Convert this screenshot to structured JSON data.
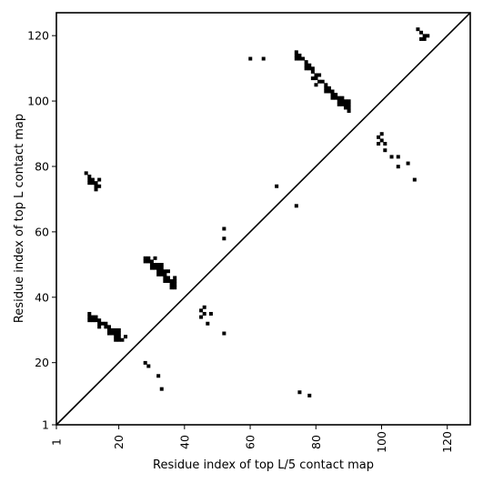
{
  "chart_data": {
    "type": "heatmap",
    "xlabel": "Residue index of top L/5 contact map",
    "ylabel": "Residue index of top L contact map",
    "xlim": [
      1,
      127
    ],
    "ylim": [
      1,
      127
    ],
    "x_ticks": [
      1,
      20,
      40,
      60,
      80,
      100,
      120
    ],
    "y_ticks": [
      1,
      20,
      40,
      60,
      80,
      100,
      120
    ],
    "x_tick_rotation": -90,
    "grid": false,
    "diagonal_line": true,
    "cell_color": "#000000",
    "upper_triangle_contacts": [
      [
        10,
        78
      ],
      [
        11,
        75
      ],
      [
        11,
        76
      ],
      [
        11,
        77
      ],
      [
        12,
        75
      ],
      [
        12,
        76
      ],
      [
        13,
        73
      ],
      [
        13,
        74
      ],
      [
        13,
        75
      ],
      [
        14,
        74
      ],
      [
        14,
        76
      ],
      [
        11,
        33
      ],
      [
        11,
        34
      ],
      [
        11,
        35
      ],
      [
        12,
        33
      ],
      [
        12,
        34
      ],
      [
        13,
        33
      ],
      [
        13,
        34
      ],
      [
        14,
        31
      ],
      [
        14,
        32
      ],
      [
        14,
        33
      ],
      [
        15,
        32
      ],
      [
        16,
        31
      ],
      [
        16,
        32
      ],
      [
        17,
        29
      ],
      [
        17,
        30
      ],
      [
        17,
        31
      ],
      [
        18,
        29
      ],
      [
        18,
        30
      ],
      [
        19,
        27
      ],
      [
        19,
        28
      ],
      [
        19,
        29
      ],
      [
        19,
        30
      ],
      [
        20,
        27
      ],
      [
        20,
        28
      ],
      [
        20,
        29
      ],
      [
        20,
        30
      ],
      [
        21,
        27
      ],
      [
        22,
        28
      ],
      [
        28,
        51
      ],
      [
        28,
        52
      ],
      [
        29,
        51
      ],
      [
        29,
        52
      ],
      [
        30,
        49
      ],
      [
        30,
        50
      ],
      [
        30,
        51
      ],
      [
        31,
        49
      ],
      [
        31,
        50
      ],
      [
        31,
        52
      ],
      [
        32,
        47
      ],
      [
        32,
        48
      ],
      [
        32,
        49
      ],
      [
        32,
        50
      ],
      [
        33,
        47
      ],
      [
        33,
        48
      ],
      [
        33,
        49
      ],
      [
        33,
        50
      ],
      [
        34,
        45
      ],
      [
        34,
        46
      ],
      [
        34,
        47
      ],
      [
        34,
        48
      ],
      [
        35,
        45
      ],
      [
        35,
        46
      ],
      [
        35,
        48
      ],
      [
        36,
        43
      ],
      [
        36,
        44
      ],
      [
        36,
        45
      ],
      [
        37,
        43
      ],
      [
        37,
        44
      ],
      [
        37,
        45
      ],
      [
        37,
        46
      ],
      [
        45,
        34
      ],
      [
        45,
        36
      ],
      [
        46,
        35
      ],
      [
        46,
        37
      ],
      [
        47,
        32
      ],
      [
        48,
        35
      ],
      [
        52,
        29
      ],
      [
        52,
        58
      ],
      [
        52,
        61
      ],
      [
        60,
        113
      ],
      [
        64,
        113
      ],
      [
        68,
        74
      ],
      [
        74,
        68
      ],
      [
        74,
        113
      ],
      [
        74,
        114
      ],
      [
        74,
        115
      ],
      [
        75,
        113
      ],
      [
        75,
        114
      ],
      [
        76,
        113
      ],
      [
        77,
        110
      ],
      [
        77,
        111
      ],
      [
        77,
        112
      ],
      [
        78,
        110
      ],
      [
        78,
        111
      ],
      [
        79,
        107
      ],
      [
        79,
        109
      ],
      [
        79,
        110
      ],
      [
        80,
        105
      ],
      [
        80,
        107
      ],
      [
        80,
        108
      ],
      [
        81,
        106
      ],
      [
        81,
        108
      ],
      [
        82,
        106
      ],
      [
        83,
        103
      ],
      [
        83,
        104
      ],
      [
        83,
        105
      ],
      [
        84,
        103
      ],
      [
        84,
        104
      ],
      [
        85,
        101
      ],
      [
        85,
        102
      ],
      [
        85,
        103
      ],
      [
        86,
        101
      ],
      [
        86,
        102
      ],
      [
        87,
        99
      ],
      [
        87,
        100
      ],
      [
        87,
        101
      ],
      [
        88,
        99
      ],
      [
        88,
        100
      ],
      [
        88,
        101
      ],
      [
        89,
        98
      ],
      [
        89,
        99
      ],
      [
        89,
        100
      ],
      [
        90,
        97
      ],
      [
        90,
        98
      ],
      [
        90,
        99
      ],
      [
        90,
        100
      ],
      [
        99,
        87
      ],
      [
        99,
        89
      ],
      [
        100,
        88
      ],
      [
        100,
        90
      ],
      [
        101,
        85
      ],
      [
        101,
        87
      ],
      [
        103,
        83
      ],
      [
        105,
        80
      ],
      [
        105,
        83
      ],
      [
        108,
        81
      ],
      [
        110,
        76
      ],
      [
        111,
        122
      ],
      [
        112,
        121
      ],
      [
        112,
        119
      ],
      [
        113,
        119
      ],
      [
        113,
        120
      ],
      [
        114,
        120
      ]
    ],
    "lower_triangle_contacts": [
      [
        28,
        20
      ],
      [
        29,
        19
      ],
      [
        32,
        16
      ],
      [
        33,
        12
      ],
      [
        75,
        11
      ],
      [
        78,
        10
      ]
    ]
  }
}
